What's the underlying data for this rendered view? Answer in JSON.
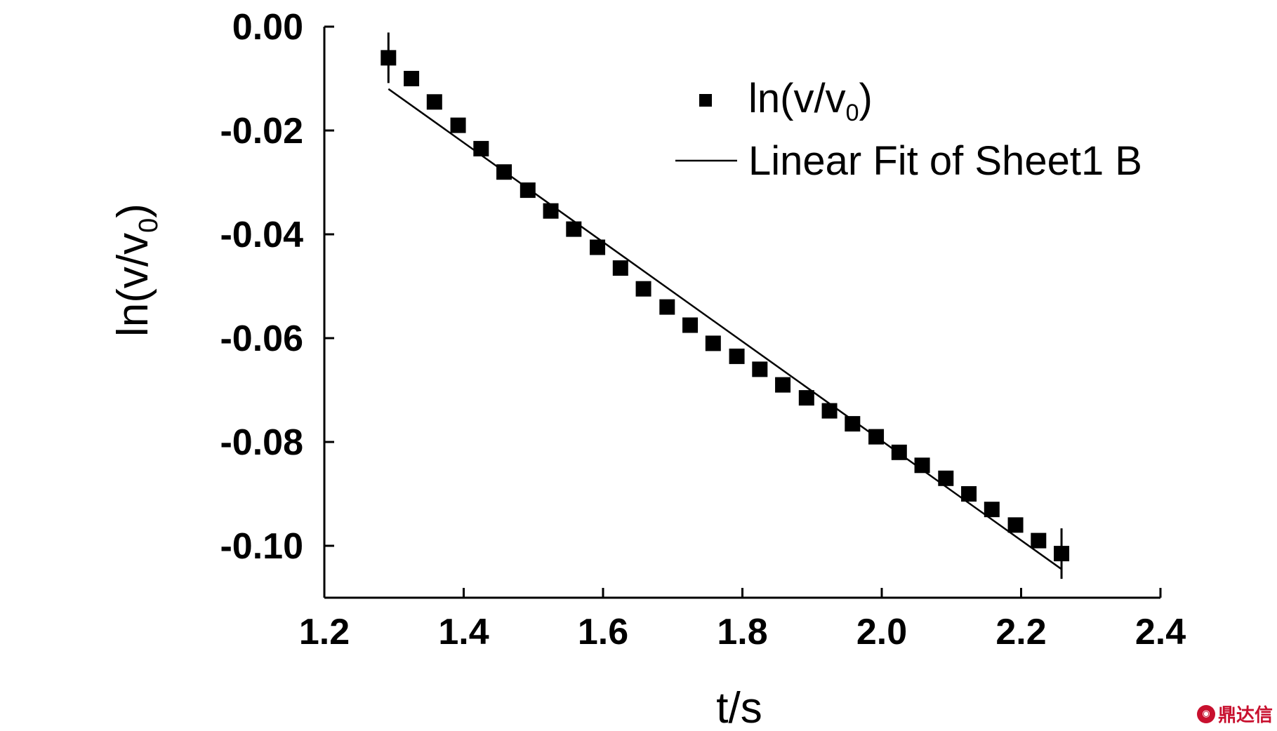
{
  "chart_data": {
    "type": "scatter",
    "xlabel": "t/s",
    "ylabel": "ln(v/v",
    "ylabel_sub": "0",
    "ylabel_close": ")",
    "xlim": [
      1.2,
      2.4
    ],
    "ylim": [
      -0.11,
      0.0
    ],
    "xticks": [
      1.2,
      1.4,
      1.6,
      1.8,
      2.0,
      2.2,
      2.4
    ],
    "xtick_labels": [
      "1.2",
      "1.4",
      "1.6",
      "1.8",
      "2.0",
      "2.2",
      "2.4"
    ],
    "yticks": [
      0.0,
      -0.02,
      -0.04,
      -0.06,
      -0.08,
      -0.1
    ],
    "ytick_labels": [
      "0.00",
      "-0.02",
      "-0.04",
      "-0.06",
      "-0.08",
      "-0.10"
    ],
    "grid": false,
    "legend_position": "top-right",
    "series": [
      {
        "name": "ln(v/v",
        "name_sub": "0",
        "name_close": ")",
        "kind": "scatter",
        "marker": "square",
        "x": [
          1.292,
          1.325,
          1.358,
          1.392,
          1.425,
          1.458,
          1.492,
          1.525,
          1.558,
          1.592,
          1.625,
          1.658,
          1.692,
          1.725,
          1.758,
          1.792,
          1.825,
          1.858,
          1.892,
          1.925,
          1.958,
          1.992,
          2.025,
          2.058,
          2.092,
          2.125,
          2.158,
          2.192,
          2.225,
          2.258
        ],
        "y": [
          -0.006,
          -0.01,
          -0.0145,
          -0.019,
          -0.0235,
          -0.028,
          -0.0315,
          -0.0355,
          -0.039,
          -0.0425,
          -0.0465,
          -0.0505,
          -0.054,
          -0.0575,
          -0.061,
          -0.0635,
          -0.066,
          -0.069,
          -0.0715,
          -0.074,
          -0.0765,
          -0.079,
          -0.082,
          -0.0845,
          -0.087,
          -0.09,
          -0.093,
          -0.096,
          -0.099,
          -0.1015
        ]
      },
      {
        "name": "Linear Fit of Sheet1 B",
        "kind": "line",
        "x": [
          1.292,
          2.258
        ],
        "y": [
          -0.012,
          -0.1045
        ]
      }
    ]
  },
  "watermark": {
    "icon": "logo-icon",
    "text": "鼎达信"
  }
}
